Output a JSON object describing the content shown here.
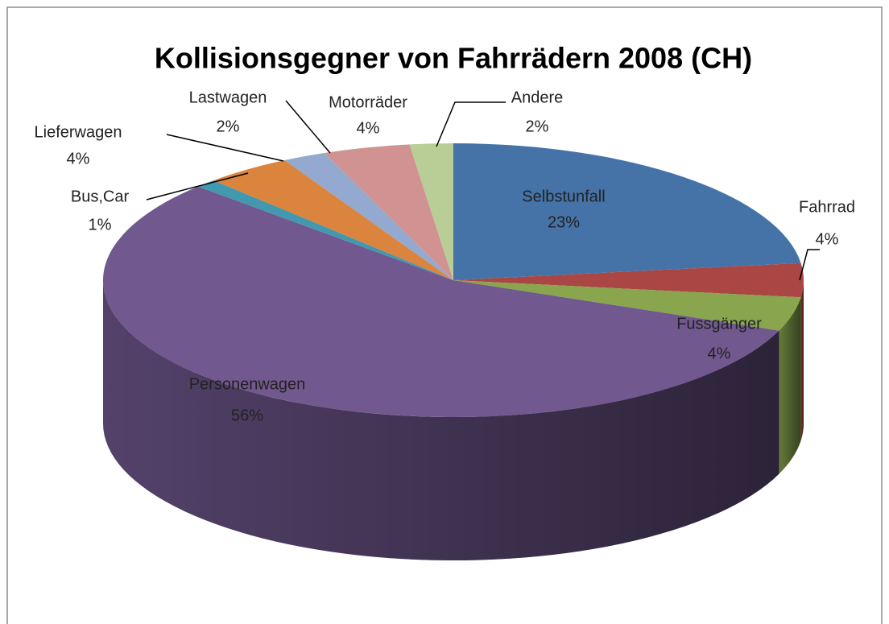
{
  "chart_data": {
    "type": "pie",
    "title": "Kollisionsgegner von Fahrrädern 2008 (CH)",
    "categories": [
      "Selbstunfall",
      "Fahrrad",
      "Fussgänger",
      "Personenwagen",
      "Bus,Car",
      "Lieferwagen",
      "Lastwagen",
      "Motorräder",
      "Andere"
    ],
    "values": [
      23,
      4,
      4,
      56,
      1,
      4,
      2,
      4,
      2
    ],
    "value_labels": [
      "23%",
      "4%",
      "4%",
      "56%",
      "1%",
      "4%",
      "2%",
      "4%",
      "2%"
    ],
    "colors": [
      "#4572a7",
      "#aa4643",
      "#89a54e",
      "#71588f",
      "#4198af",
      "#db843d",
      "#93a9cf",
      "#d19392",
      "#b9cd96"
    ]
  }
}
